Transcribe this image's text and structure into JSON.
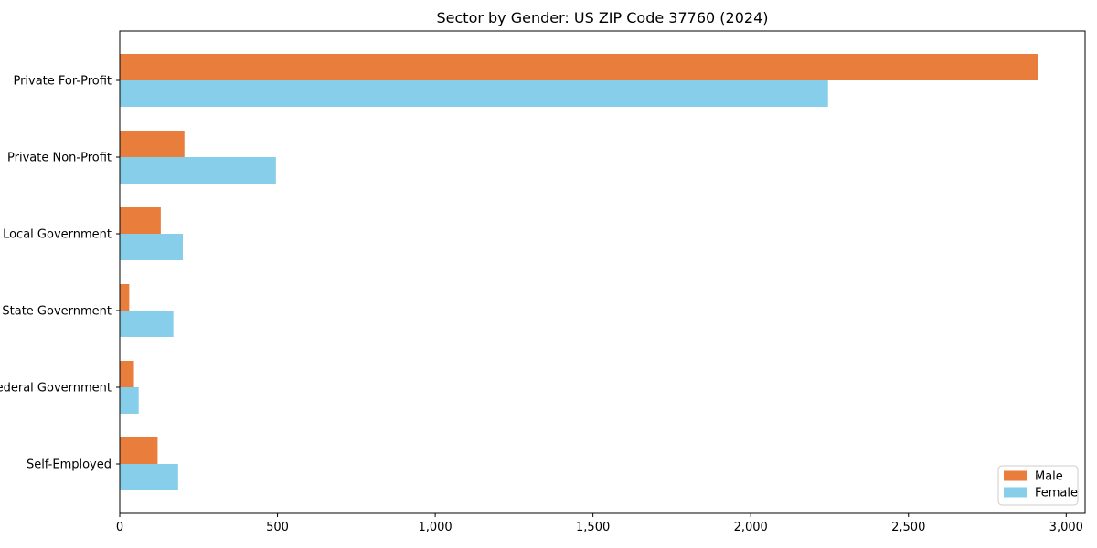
{
  "chart_data": {
    "type": "bar",
    "orientation": "horizontal",
    "title": "Sector by Gender: US ZIP Code 37760 (2024)",
    "categories": [
      "Private For-Profit",
      "Private Non-Profit",
      "Local Government",
      "State Government",
      "Federal Government",
      "Self-Employed"
    ],
    "series": [
      {
        "name": "Male",
        "color": "#e87d3c",
        "values": [
          2910,
          205,
          130,
          30,
          45,
          120
        ]
      },
      {
        "name": "Female",
        "color": "#87ceeb",
        "values": [
          2245,
          495,
          200,
          170,
          60,
          185
        ]
      }
    ],
    "xlabel": "",
    "ylabel": "",
    "xlim": [
      0,
      3060
    ],
    "xticks": [
      0,
      500,
      1000,
      1500,
      2000,
      2500,
      3000
    ],
    "xtick_labels": [
      "0",
      "500",
      "1,000",
      "1,500",
      "2,000",
      "2,500",
      "3,000"
    ],
    "grid": false,
    "legend": {
      "position": "lower right",
      "entries": [
        "Male",
        "Female"
      ]
    }
  },
  "colors": {
    "axis": "#000000",
    "text": "#000000",
    "background": "#ffffff",
    "legend_border": "#cccccc",
    "legend_background": "#ffffff"
  }
}
